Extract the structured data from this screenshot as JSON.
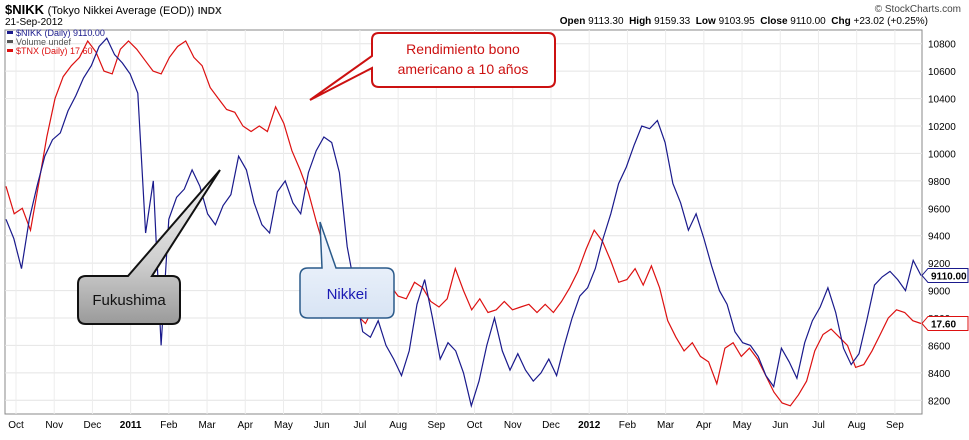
{
  "header": {
    "symbol": "$NIKK",
    "description": "(Tokyo Nikkei Average (EOD))",
    "exchange": "INDX",
    "date": "21-Sep-2012",
    "brand": "© StockCharts.com",
    "open_label": "Open",
    "open": "9113.30",
    "high_label": "High",
    "high": "9159.33",
    "low_label": "Low",
    "low": "9103.95",
    "close_label": "Close",
    "close": "9110.00",
    "chg_label": "Chg",
    "chg": "+23.02 (+0.25%)"
  },
  "legend": [
    {
      "text": "$NIKK (Daily) 9110.00",
      "color": "#1a1a8c"
    },
    {
      "text": "Volume undef",
      "color": "#555555"
    },
    {
      "text": "$TNX (Daily) 17.60",
      "color": "#dd1111"
    }
  ],
  "annotations": {
    "bond": "Rendimiento bono americano a 10 años",
    "fukushima": "Fukushima",
    "nikkei": "Nikkei"
  },
  "chart_data": {
    "type": "line",
    "x_ticks": [
      "Oct",
      "Nov",
      "Dec",
      "2011",
      "Feb",
      "Mar",
      "Apr",
      "May",
      "Jun",
      "Jul",
      "Aug",
      "Sep",
      "Oct",
      "Nov",
      "Dec",
      "2012",
      "Feb",
      "Mar",
      "Apr",
      "May",
      "Jun",
      "Jul",
      "Aug",
      "Sep"
    ],
    "y_ticks": [
      8200,
      8400,
      8600,
      8800,
      9000,
      9200,
      9400,
      9600,
      9800,
      10000,
      10200,
      10400,
      10600,
      10800
    ],
    "ylim": [
      8100,
      10900
    ],
    "grid": true,
    "legend_position": "top-left",
    "series": [
      {
        "name": "$NIKK (Daily)",
        "color": "#1a1a8c",
        "last_value": "9110.00",
        "values": [
          9520,
          9380,
          9160,
          9520,
          9760,
          9980,
          10100,
          10150,
          10310,
          10420,
          10550,
          10640,
          10780,
          10840,
          10720,
          10660,
          10580,
          10440,
          9420,
          9800,
          8600,
          9520,
          9680,
          9740,
          9880,
          9760,
          9560,
          9480,
          9620,
          9700,
          9980,
          9880,
          9640,
          9480,
          9420,
          9720,
          9800,
          9640,
          9560,
          9860,
          10020,
          10120,
          10080,
          9860,
          9320,
          9020,
          8700,
          8660,
          8780,
          8600,
          8500,
          8380,
          8560,
          8900,
          9080,
          8800,
          8500,
          8620,
          8560,
          8400,
          8160,
          8340,
          8600,
          8800,
          8560,
          8420,
          8540,
          8420,
          8340,
          8400,
          8500,
          8380,
          8600,
          8800,
          8960,
          9020,
          9160,
          9380,
          9560,
          9780,
          9900,
          10060,
          10200,
          10180,
          10240,
          10080,
          9780,
          9640,
          9440,
          9560,
          9380,
          9180,
          9000,
          8900,
          8700,
          8620,
          8600,
          8520,
          8380,
          8300,
          8580,
          8480,
          8360,
          8620,
          8780,
          8880,
          9020,
          8840,
          8580,
          8460,
          8540,
          8780,
          9040,
          9100,
          9140,
          9080,
          9000,
          9220,
          9110
        ]
      },
      {
        "name": "$TNX (Daily)",
        "color": "#dd1111",
        "last_value": "17.60",
        "values": [
          9760,
          9560,
          9600,
          9440,
          9780,
          10120,
          10400,
          10560,
          10640,
          10700,
          10820,
          10740,
          10600,
          10580,
          10760,
          10820,
          10760,
          10680,
          10600,
          10580,
          10700,
          10780,
          10820,
          10700,
          10640,
          10480,
          10400,
          10320,
          10300,
          10200,
          10160,
          10200,
          10160,
          10340,
          10220,
          10020,
          9880,
          9720,
          9500,
          9300,
          9120,
          9040,
          8900,
          8820,
          8760,
          8880,
          9000,
          9040,
          8960,
          8940,
          9060,
          9020,
          8920,
          8880,
          8940,
          9160,
          9000,
          8860,
          8940,
          8840,
          8860,
          8920,
          8860,
          8880,
          8900,
          8840,
          8900,
          8840,
          8920,
          9020,
          9140,
          9300,
          9440,
          9360,
          9220,
          9060,
          9080,
          9160,
          9040,
          9180,
          9020,
          8780,
          8660,
          8560,
          8620,
          8520,
          8480,
          8320,
          8580,
          8620,
          8520,
          8580,
          8500,
          8380,
          8260,
          8180,
          8160,
          8240,
          8340,
          8560,
          8680,
          8720,
          8660,
          8600,
          8440,
          8460,
          8560,
          8680,
          8800,
          8860,
          8840,
          8780,
          8760
        ]
      }
    ]
  }
}
